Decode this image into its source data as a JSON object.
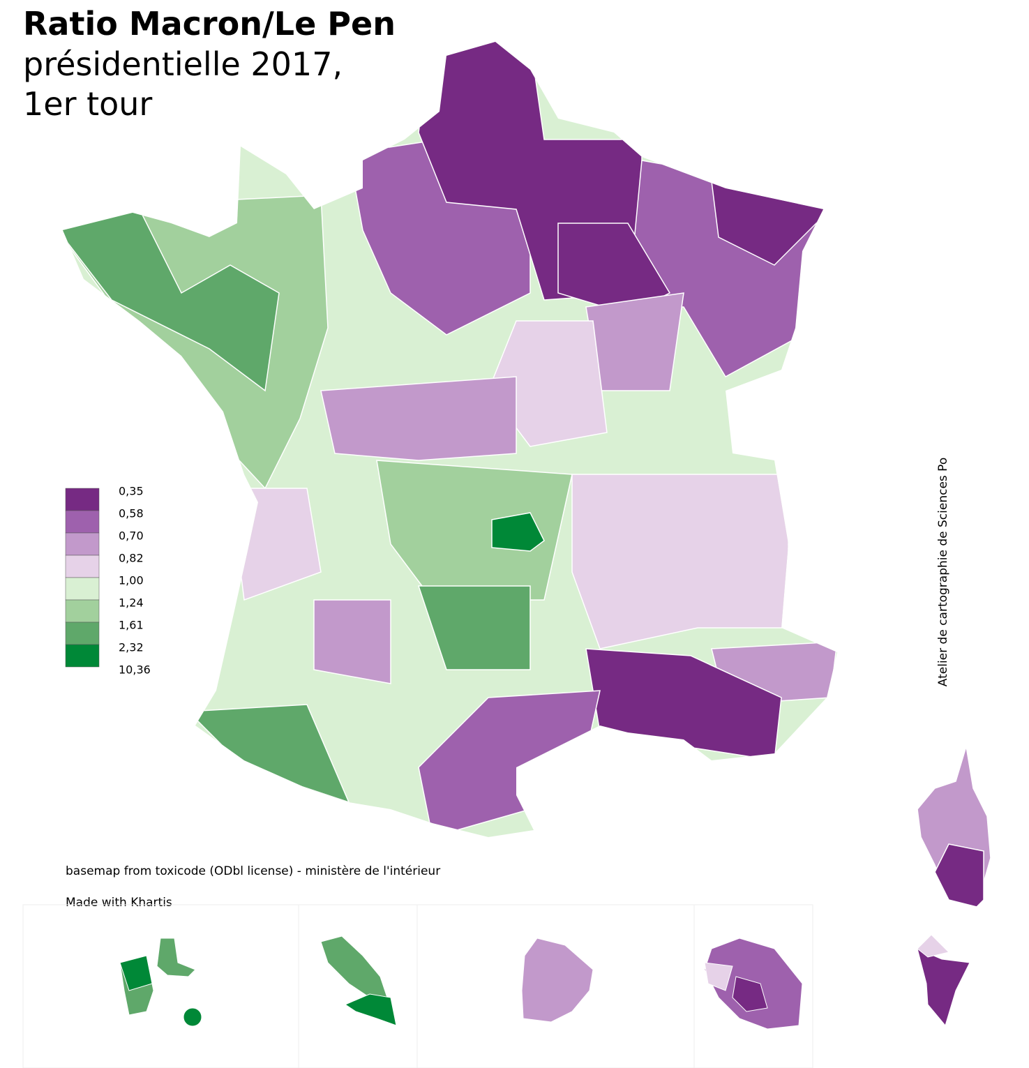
{
  "title": "Ratio Macron/Le Pen",
  "subtitle_lines": [
    "présidentielle 2017,",
    "1er tour"
  ],
  "legend": [
    {
      "label": "0,35",
      "color": "#762a83"
    },
    {
      "label": "0,58",
      "color": "#9e61ad"
    },
    {
      "label": "0,70",
      "color": "#c299cb"
    },
    {
      "label": "0,82",
      "color": "#e6d2e8"
    },
    {
      "label": "1,00",
      "color": "#d9f0d3"
    },
    {
      "label": "1,24",
      "color": "#a2d09d"
    },
    {
      "label": "1,61",
      "color": "#5fa86a"
    },
    {
      "label": "2,32",
      "color": "#008837"
    },
    {
      "label": "10,36",
      "color": null
    }
  ],
  "credits": [
    "basemap from toxicode (ODbl license) - ministère de l'intérieur",
    "Made with Khartis"
  ],
  "side_note": "Atelier de cartographie de Sciences Po"
}
